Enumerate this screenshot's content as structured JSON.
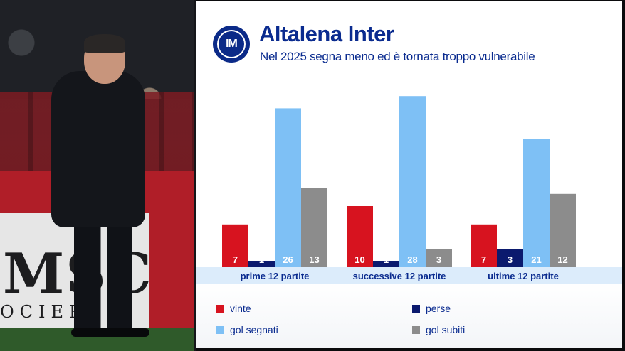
{
  "header": {
    "title": "Altalena Inter",
    "subtitle": "Nel 2025 segna meno ed è tornata troppo vulnerabile",
    "logo_text": "IM"
  },
  "photo": {
    "board_text": "MSC",
    "board_text2": "OCIER"
  },
  "colors": {
    "vinte": "#d7131f",
    "perse": "#0b1a6e",
    "gol_segnati": "#7ec0f5",
    "gol_subiti": "#8c8c8c",
    "brand": "#0a2b8f"
  },
  "chart_data": {
    "type": "bar",
    "categories": [
      "prime 12 partite",
      "successive 12 partite",
      "ultime 12 partite"
    ],
    "series": [
      {
        "name": "vinte",
        "values": [
          7,
          10,
          7
        ]
      },
      {
        "name": "perse",
        "values": [
          1,
          1,
          3
        ]
      },
      {
        "name": "gol segnati",
        "values": [
          26,
          28,
          21
        ]
      },
      {
        "name": "gol subiti",
        "values": [
          13,
          3,
          12
        ]
      }
    ],
    "data_labels": true,
    "legend": "bottom"
  },
  "legend": [
    {
      "label": "vinte"
    },
    {
      "label": "perse"
    },
    {
      "label": "gol segnati"
    },
    {
      "label": "gol subiti"
    }
  ]
}
